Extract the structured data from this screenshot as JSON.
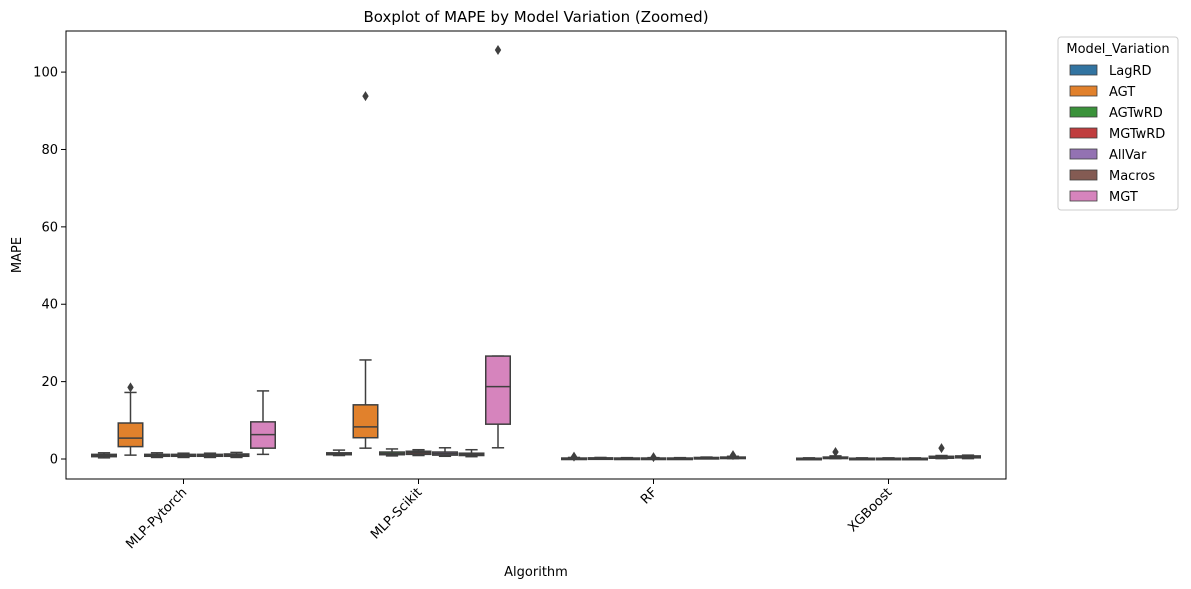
{
  "chart_data": {
    "type": "boxplot",
    "title": "Boxplot of MAPE by Model Variation (Zoomed)",
    "xlabel": "Algorithm",
    "ylabel": "MAPE",
    "ylim": [
      -5,
      111
    ],
    "yticks": [
      0,
      20,
      40,
      60,
      80,
      100
    ],
    "grid": false,
    "legend": {
      "title": "Model_Variation",
      "placement": "outside-top-right"
    },
    "categories": [
      "MLP-Pytorch",
      "MLP-Scikit",
      "RF",
      "XGBoost"
    ],
    "series": [
      {
        "name": "LagRD",
        "color": "#3274a1",
        "boxes": [
          {
            "min": 0.3,
            "q1": 0.6,
            "median": 0.9,
            "q3": 1.2,
            "max": 1.6,
            "outliers": []
          },
          {
            "min": 0.9,
            "q1": 1.1,
            "median": 1.3,
            "q3": 1.6,
            "max": 2.3,
            "outliers": []
          },
          {
            "min": 0.05,
            "q1": 0.1,
            "median": 0.15,
            "q3": 0.25,
            "max": 0.4,
            "outliers": [
              0.6
            ]
          },
          {
            "min": 0.05,
            "q1": 0.1,
            "median": 0.15,
            "q3": 0.2,
            "max": 0.3,
            "outliers": []
          }
        ]
      },
      {
        "name": "AGT",
        "color": "#e1812c",
        "boxes": [
          {
            "min": 1.0,
            "q1": 3.2,
            "median": 5.4,
            "q3": 9.3,
            "max": 17.2,
            "outliers": [
              18.5
            ]
          },
          {
            "min": 2.8,
            "q1": 5.5,
            "median": 8.3,
            "q3": 14.0,
            "max": 25.6,
            "outliers": [
              93.8
            ]
          },
          {
            "min": 0.1,
            "q1": 0.15,
            "median": 0.2,
            "q3": 0.3,
            "max": 0.4,
            "outliers": []
          },
          {
            "min": 0.1,
            "q1": 0.2,
            "median": 0.3,
            "q3": 0.5,
            "max": 0.8,
            "outliers": [
              1.8
            ]
          }
        ]
      },
      {
        "name": "AGTwRD",
        "color": "#3a923a",
        "boxes": [
          {
            "min": 0.4,
            "q1": 0.7,
            "median": 1.0,
            "q3": 1.2,
            "max": 1.6,
            "outliers": []
          },
          {
            "min": 0.8,
            "q1": 1.1,
            "median": 1.4,
            "q3": 1.8,
            "max": 2.6,
            "outliers": []
          },
          {
            "min": 0.05,
            "q1": 0.1,
            "median": 0.15,
            "q3": 0.25,
            "max": 0.35,
            "outliers": []
          },
          {
            "min": 0.05,
            "q1": 0.1,
            "median": 0.15,
            "q3": 0.2,
            "max": 0.3,
            "outliers": []
          }
        ]
      },
      {
        "name": "MGTwRD",
        "color": "#c03d3e",
        "boxes": [
          {
            "min": 0.4,
            "q1": 0.7,
            "median": 0.9,
            "q3": 1.2,
            "max": 1.5,
            "outliers": []
          },
          {
            "min": 0.9,
            "q1": 1.2,
            "median": 1.6,
            "q3": 2.0,
            "max": 2.4,
            "outliers": []
          },
          {
            "min": 0.05,
            "q1": 0.1,
            "median": 0.15,
            "q3": 0.25,
            "max": 0.35,
            "outliers": [
              0.5
            ]
          },
          {
            "min": 0.05,
            "q1": 0.1,
            "median": 0.15,
            "q3": 0.2,
            "max": 0.3,
            "outliers": []
          }
        ]
      },
      {
        "name": "AllVar",
        "color": "#9372b2",
        "boxes": [
          {
            "min": 0.4,
            "q1": 0.7,
            "median": 0.9,
            "q3": 1.2,
            "max": 1.5,
            "outliers": []
          },
          {
            "min": 0.7,
            "q1": 1.0,
            "median": 1.4,
            "q3": 1.8,
            "max": 2.9,
            "outliers": []
          },
          {
            "min": 0.05,
            "q1": 0.1,
            "median": 0.15,
            "q3": 0.25,
            "max": 0.35,
            "outliers": []
          },
          {
            "min": 0.05,
            "q1": 0.1,
            "median": 0.15,
            "q3": 0.2,
            "max": 0.3,
            "outliers": []
          }
        ]
      },
      {
        "name": "Macros",
        "color": "#845b53",
        "boxes": [
          {
            "min": 0.4,
            "q1": 0.7,
            "median": 1.0,
            "q3": 1.3,
            "max": 1.7,
            "outliers": []
          },
          {
            "min": 0.6,
            "q1": 0.9,
            "median": 1.2,
            "q3": 1.5,
            "max": 2.4,
            "outliers": []
          },
          {
            "min": 0.1,
            "q1": 0.2,
            "median": 0.3,
            "q3": 0.4,
            "max": 0.5,
            "outliers": []
          },
          {
            "min": 0.1,
            "q1": 0.2,
            "median": 0.4,
            "q3": 0.7,
            "max": 0.9,
            "outliers": [
              2.8
            ]
          }
        ]
      },
      {
        "name": "MGT",
        "color": "#d684bd",
        "boxes": [
          {
            "min": 1.2,
            "q1": 2.8,
            "median": 6.3,
            "q3": 9.6,
            "max": 17.6,
            "outliers": []
          },
          {
            "min": 2.9,
            "q1": 9.0,
            "median": 18.7,
            "q3": 26.6,
            "max": 26.6,
            "outliers": [
              105.7
            ]
          },
          {
            "min": 0.1,
            "q1": 0.2,
            "median": 0.3,
            "q3": 0.5,
            "max": 0.7,
            "outliers": [
              1.0
            ]
          },
          {
            "min": 0.1,
            "q1": 0.3,
            "median": 0.5,
            "q3": 0.8,
            "max": 1.0,
            "outliers": []
          }
        ]
      }
    ]
  }
}
